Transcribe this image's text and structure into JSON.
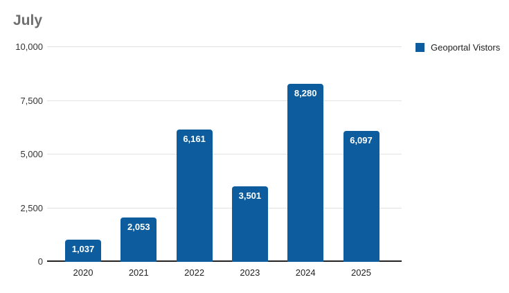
{
  "title": "July",
  "legend": {
    "label": "Geoportal Vistors"
  },
  "colors": {
    "bar": "#0d5d9e",
    "grid": "#e2e2e2",
    "axis": "#212121",
    "title": "#6e6e6e",
    "bar_label": "#ffffff"
  },
  "chart_data": {
    "type": "bar",
    "title": "July",
    "series_name": "Geoportal Vistors",
    "categories": [
      "2020",
      "2021",
      "2022",
      "2023",
      "2024",
      "2025"
    ],
    "values": [
      1037,
      2053,
      6161,
      3501,
      8280,
      6097
    ],
    "value_labels": [
      "1,037",
      "2,053",
      "6,161",
      "3,501",
      "8,280",
      "6,097"
    ],
    "xlabel": "",
    "ylabel": "",
    "ylim": [
      0,
      10000
    ],
    "y_ticks": [
      0,
      2500,
      5000,
      7500,
      10000
    ],
    "y_tick_labels": [
      "0",
      "2,500",
      "5,000",
      "7,500",
      "10,000"
    ],
    "grid": true,
    "legend_position": "top-right",
    "bar_color": "#0d5d9e"
  }
}
